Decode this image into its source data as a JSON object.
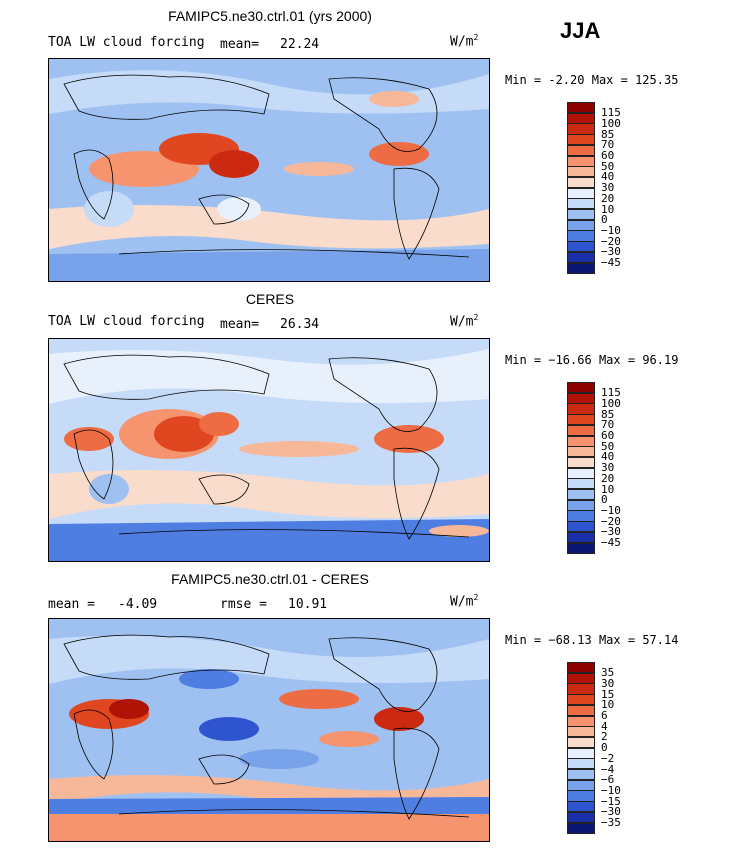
{
  "season": "JJA",
  "panels": [
    {
      "title": "FAMIPC5.ne30.ctrl.01 (yrs 2000)",
      "left_label": "TOA LW cloud forcing",
      "stat_label": "mean=",
      "stat_value": "22.24",
      "units": "W/m",
      "units_exp": "2",
      "minmax_label_min": "Min =",
      "min": "-2.20",
      "minmax_label_max": "Max =",
      "max": "125.35",
      "colorbar": {
        "labels": [
          "115",
          "100",
          "85",
          "70",
          "60",
          "50",
          "40",
          "30",
          "20",
          "10",
          "0",
          "−10",
          "−20",
          "−30",
          "−45"
        ],
        "colors": [
          "#8b0000",
          "#b01205",
          "#cc2a10",
          "#e0461f",
          "#ee6c44",
          "#f5946e",
          "#f7b89a",
          "#f9dccb",
          "#e8f1fb",
          "#c5dbf7",
          "#9fc1f1",
          "#78a3ea",
          "#4f7ee3",
          "#2f54d0",
          "#1a2fa8",
          "#0a1670"
        ]
      }
    },
    {
      "title": "CERES",
      "left_label": "TOA LW cloud forcing",
      "stat_label": "mean=",
      "stat_value": "26.34",
      "units": "W/m",
      "units_exp": "2",
      "minmax_label_min": "Min =",
      "min": "−16.66",
      "minmax_label_max": "Max =",
      "max": "96.19",
      "colorbar": {
        "labels": [
          "115",
          "100",
          "85",
          "70",
          "60",
          "50",
          "40",
          "30",
          "20",
          "10",
          "0",
          "−10",
          "−20",
          "−30",
          "−45"
        ],
        "colors": [
          "#8b0000",
          "#b01205",
          "#cc2a10",
          "#e0461f",
          "#ee6c44",
          "#f5946e",
          "#f7b89a",
          "#f9dccb",
          "#e8f1fb",
          "#c5dbf7",
          "#9fc1f1",
          "#78a3ea",
          "#4f7ee3",
          "#2f54d0",
          "#1a2fa8",
          "#0a1670"
        ]
      }
    },
    {
      "title": "FAMIPC5.ne30.ctrl.01 - CERES",
      "left_label": "mean =",
      "left_value": "-4.09",
      "stat_label": "rmse =",
      "stat_value": "10.91",
      "units": "W/m",
      "units_exp": "2",
      "minmax_label_min": "Min =",
      "min": "−68.13",
      "minmax_label_max": "Max =",
      "max": "57.14",
      "colorbar": {
        "labels": [
          "35",
          "30",
          "15",
          "10",
          "6",
          "4",
          "2",
          "0",
          "−2",
          "−4",
          "−6",
          "−10",
          "−15",
          "−30",
          "−35"
        ],
        "colors": [
          "#8b0000",
          "#b01205",
          "#cc2a10",
          "#e0461f",
          "#ee6c44",
          "#f5946e",
          "#f7b89a",
          "#f9dccb",
          "#e8f1fb",
          "#c5dbf7",
          "#9fc1f1",
          "#78a3ea",
          "#4f7ee3",
          "#2f54d0",
          "#1a2fa8",
          "#0a1670"
        ]
      }
    }
  ]
}
